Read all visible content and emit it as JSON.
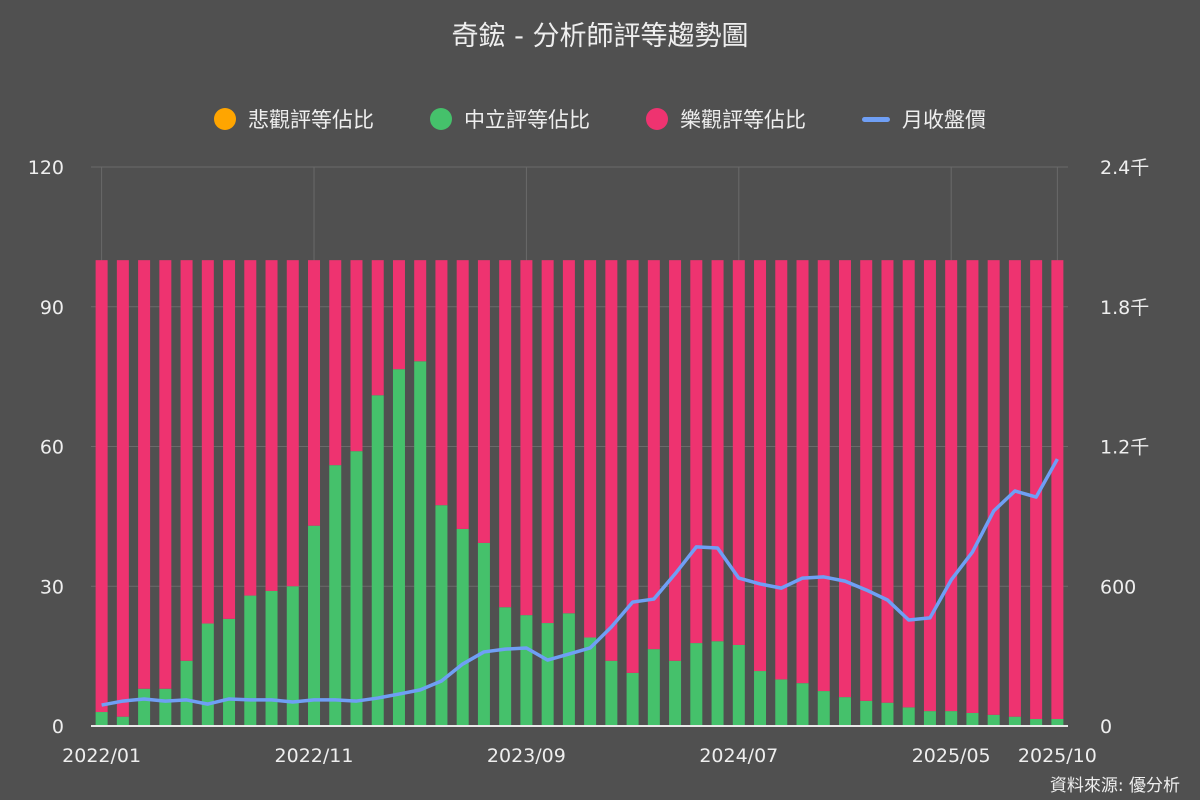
{
  "chart_data": {
    "type": "bar",
    "title": "奇鋐 - 分析師評等趨勢圖",
    "stacked": true,
    "categories": [
      "2022/01",
      "2022/02",
      "2022/03",
      "2022/04",
      "2022/05",
      "2022/06",
      "2022/07",
      "2022/08",
      "2022/09",
      "2022/10",
      "2022/11",
      "2022/12",
      "2023/01",
      "2023/02",
      "2023/03",
      "2023/04",
      "2023/05",
      "2023/06",
      "2023/07",
      "2023/08",
      "2023/09",
      "2023/10",
      "2023/11",
      "2023/12",
      "2024/01",
      "2024/02",
      "2024/03",
      "2024/04",
      "2024/05",
      "2024/06",
      "2024/07",
      "2024/08",
      "2024/09",
      "2024/10",
      "2024/11",
      "2024/12",
      "2025/01",
      "2025/02",
      "2025/03",
      "2025/04",
      "2025/05",
      "2025/06",
      "2025/07",
      "2025/08",
      "2025/09",
      "2025/10"
    ],
    "x_tick_labels": [
      "2022/01",
      "2022/11",
      "2023/09",
      "2024/07",
      "2025/05",
      "2025/10"
    ],
    "x_tick_indices": [
      0,
      10,
      20,
      30,
      40,
      45
    ],
    "series": [
      {
        "name": "悲觀評等佔比",
        "type": "bar",
        "axis": "left",
        "color": "#FFA500",
        "values": [
          0,
          0,
          0,
          0,
          0,
          0,
          0,
          0,
          0,
          0,
          0,
          0,
          0,
          0,
          0,
          0,
          0,
          0,
          0,
          0,
          0,
          0,
          0,
          0,
          0,
          0,
          0,
          0,
          0,
          0,
          0,
          0,
          0,
          0,
          0,
          0,
          0,
          0,
          0,
          0,
          0,
          0,
          0,
          0,
          0,
          0
        ]
      },
      {
        "name": "中立評等佔比",
        "type": "bar",
        "axis": "left",
        "color": "#45C16B",
        "values": [
          3,
          2,
          8,
          8,
          14,
          22,
          23,
          28,
          29,
          30,
          43,
          56,
          59,
          71,
          76.6,
          78.3,
          47.4,
          42.3,
          39.3,
          25.5,
          23.8,
          22.1,
          24.2,
          19,
          14,
          11.4,
          16.5,
          14,
          17.8,
          18.2,
          17.4,
          11.8,
          10,
          9.2,
          7.5,
          6.2,
          5.4,
          5,
          4,
          3.2,
          3.2,
          2.8,
          2.4,
          2,
          1.5,
          1.5
        ]
      },
      {
        "name": "樂觀評等佔比",
        "type": "bar",
        "axis": "left",
        "color": "#EE3370",
        "values": [
          97,
          98,
          92,
          92,
          86,
          78,
          77,
          72,
          71,
          70,
          57,
          44,
          41,
          29,
          23.4,
          21.7,
          52.6,
          57.7,
          60.7,
          74.5,
          76.2,
          77.9,
          75.8,
          81,
          86,
          88.6,
          83.5,
          86,
          82.2,
          81.8,
          82.6,
          88.2,
          90,
          90.8,
          92.5,
          93.8,
          94.6,
          95,
          96,
          96.8,
          96.8,
          97.2,
          97.6,
          98,
          98.5,
          98.5
        ]
      },
      {
        "name": "月收盤價",
        "type": "line",
        "axis": "right",
        "color": "#6F9FF5",
        "values": [
          90,
          107,
          116,
          107,
          112,
          94,
          116,
          112,
          112,
          103,
          112,
          112,
          107,
          120,
          137,
          155,
          193,
          266,
          318,
          330,
          335,
          283,
          309,
          335,
          425,
          532,
          545,
          653,
          769,
          764,
          635,
          610,
          592,
          635,
          640,
          622,
          584,
          541,
          455,
          464,
          627,
          747,
          923,
          1009,
          983,
          1146
        ]
      }
    ],
    "y_left": {
      "ylim": [
        0,
        120
      ],
      "ticks": [
        "0",
        "30",
        "60",
        "90",
        "120"
      ],
      "tick_values": [
        0,
        30,
        60,
        90,
        120
      ]
    },
    "y_right": {
      "ylim": [
        0,
        2400
      ],
      "ticks": [
        "0",
        "600",
        "1.2千",
        "1.8千",
        "2.4千"
      ],
      "tick_values": [
        0,
        600,
        1200,
        1800,
        2400
      ]
    },
    "legend_position": "top-center",
    "grid": true,
    "source": "資料來源: 優分析"
  }
}
